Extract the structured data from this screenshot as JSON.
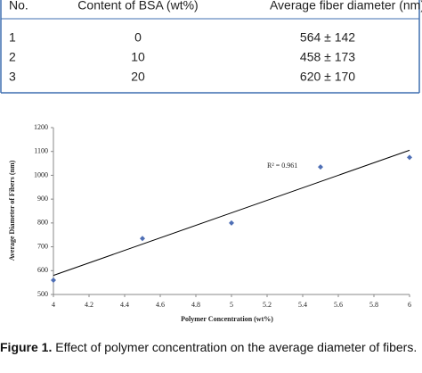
{
  "table": {
    "header": [
      "No.",
      "Content of BSA (wt%)",
      "Average fiber diameter (nm)"
    ],
    "rows": [
      [
        "1",
        "0",
        "564 ± 142"
      ],
      [
        "2",
        "10",
        "458 ± 173"
      ],
      [
        "3",
        "20",
        "620 ± 170"
      ]
    ]
  },
  "chart_data": {
    "type": "scatter",
    "x_label": "Polymer Concentration (wt%)",
    "y_label": "Average Diameter of Fibers (nm)",
    "annotation": "R² = 0.961",
    "x": [
      4,
      4.5,
      5,
      5.5,
      6
    ],
    "y": [
      560,
      735,
      800,
      1035,
      1075
    ],
    "color": "#4f6fb5",
    "trendline": {
      "x": [
        4,
        6
      ],
      "y": [
        580,
        1105
      ],
      "color": "#000000"
    },
    "xlim": [
      4,
      6
    ],
    "ylim": [
      500,
      1200
    ],
    "xticks": [
      4,
      4.2,
      4.4,
      4.6,
      4.8,
      5,
      5.2,
      5.4,
      5.6,
      5.8,
      6
    ],
    "yticks": [
      500,
      600,
      700,
      800,
      900,
      1000,
      1100,
      1200
    ]
  },
  "caption": {
    "label": "Figure 1.",
    "text": "Effect of polymer concentration on the average diameter of fibers."
  }
}
